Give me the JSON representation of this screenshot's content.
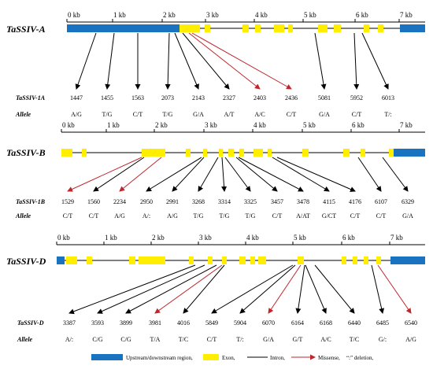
{
  "ruler_labels": [
    "0 kb",
    "1 kb",
    "2 kb",
    "3 kb",
    "4 kb",
    "5 kb",
    "6 kb",
    "7 kb"
  ],
  "colors": {
    "utr": "#1a73c0",
    "exon": "#ffee00",
    "intron": "#000000",
    "missense": "#c0272d"
  },
  "panels": [
    {
      "id": "a",
      "gene": "TaSSIV-A",
      "row_gene_label": "TaSSIV-1A",
      "row_allele_label": "Allele",
      "positions": [
        "1447",
        "1455",
        "1563",
        "2073",
        "2143",
        "2327",
        "2403",
        "2436",
        "5081",
        "5952",
        "6013"
      ],
      "alleles": [
        "A/G",
        "T/G",
        "C/T",
        "T/G",
        "G/A",
        "A/T",
        "A/C",
        "C/T",
        "G/A",
        "C/T",
        "T/:"
      ],
      "missense": [
        false,
        false,
        false,
        false,
        false,
        false,
        true,
        true,
        false,
        false,
        false
      ]
    },
    {
      "id": "b",
      "gene": "TaSSIV-B",
      "row_gene_label": "TaSSIV-1B",
      "row_allele_label": "Allele",
      "positions": [
        "1529",
        "1560",
        "2234",
        "2950",
        "2991",
        "3268",
        "3314",
        "3325",
        "3457",
        "3478",
        "4115",
        "4176",
        "6107",
        "6329"
      ],
      "alleles": [
        "C/T",
        "C/T",
        "A/G",
        "A/:",
        "A/G",
        "T/G",
        "T/G",
        "T/G",
        "C/T",
        "A/AT",
        "G/CT",
        "C/T",
        "C/T",
        "G/A"
      ],
      "missense": [
        true,
        false,
        true,
        false,
        false,
        false,
        false,
        false,
        false,
        false,
        false,
        false,
        false,
        false
      ]
    },
    {
      "id": "d",
      "gene": "TaSSIV-D",
      "row_gene_label": "TaSSIV-D",
      "row_allele_label": "Allele",
      "positions": [
        "3387",
        "3593",
        "3899",
        "3981",
        "4016",
        "5849",
        "5904",
        "6070",
        "6164",
        "6168",
        "6440",
        "6485",
        "6540"
      ],
      "alleles": [
        "A/:",
        "C/G",
        "C/G",
        "T/A",
        "T/C",
        "C/T",
        "T/:",
        "G/A",
        "G/T",
        "A/C",
        "T/C",
        "G/:",
        "A/G"
      ],
      "missense": [
        false,
        false,
        false,
        true,
        false,
        false,
        false,
        true,
        false,
        false,
        false,
        false,
        true
      ]
    }
  ],
  "legend": {
    "utr": "Upstream/downstream region,",
    "exon": "Exon,",
    "intron": "Intron,",
    "missense": "Missense,",
    "deletion": "“:” deletion,"
  }
}
